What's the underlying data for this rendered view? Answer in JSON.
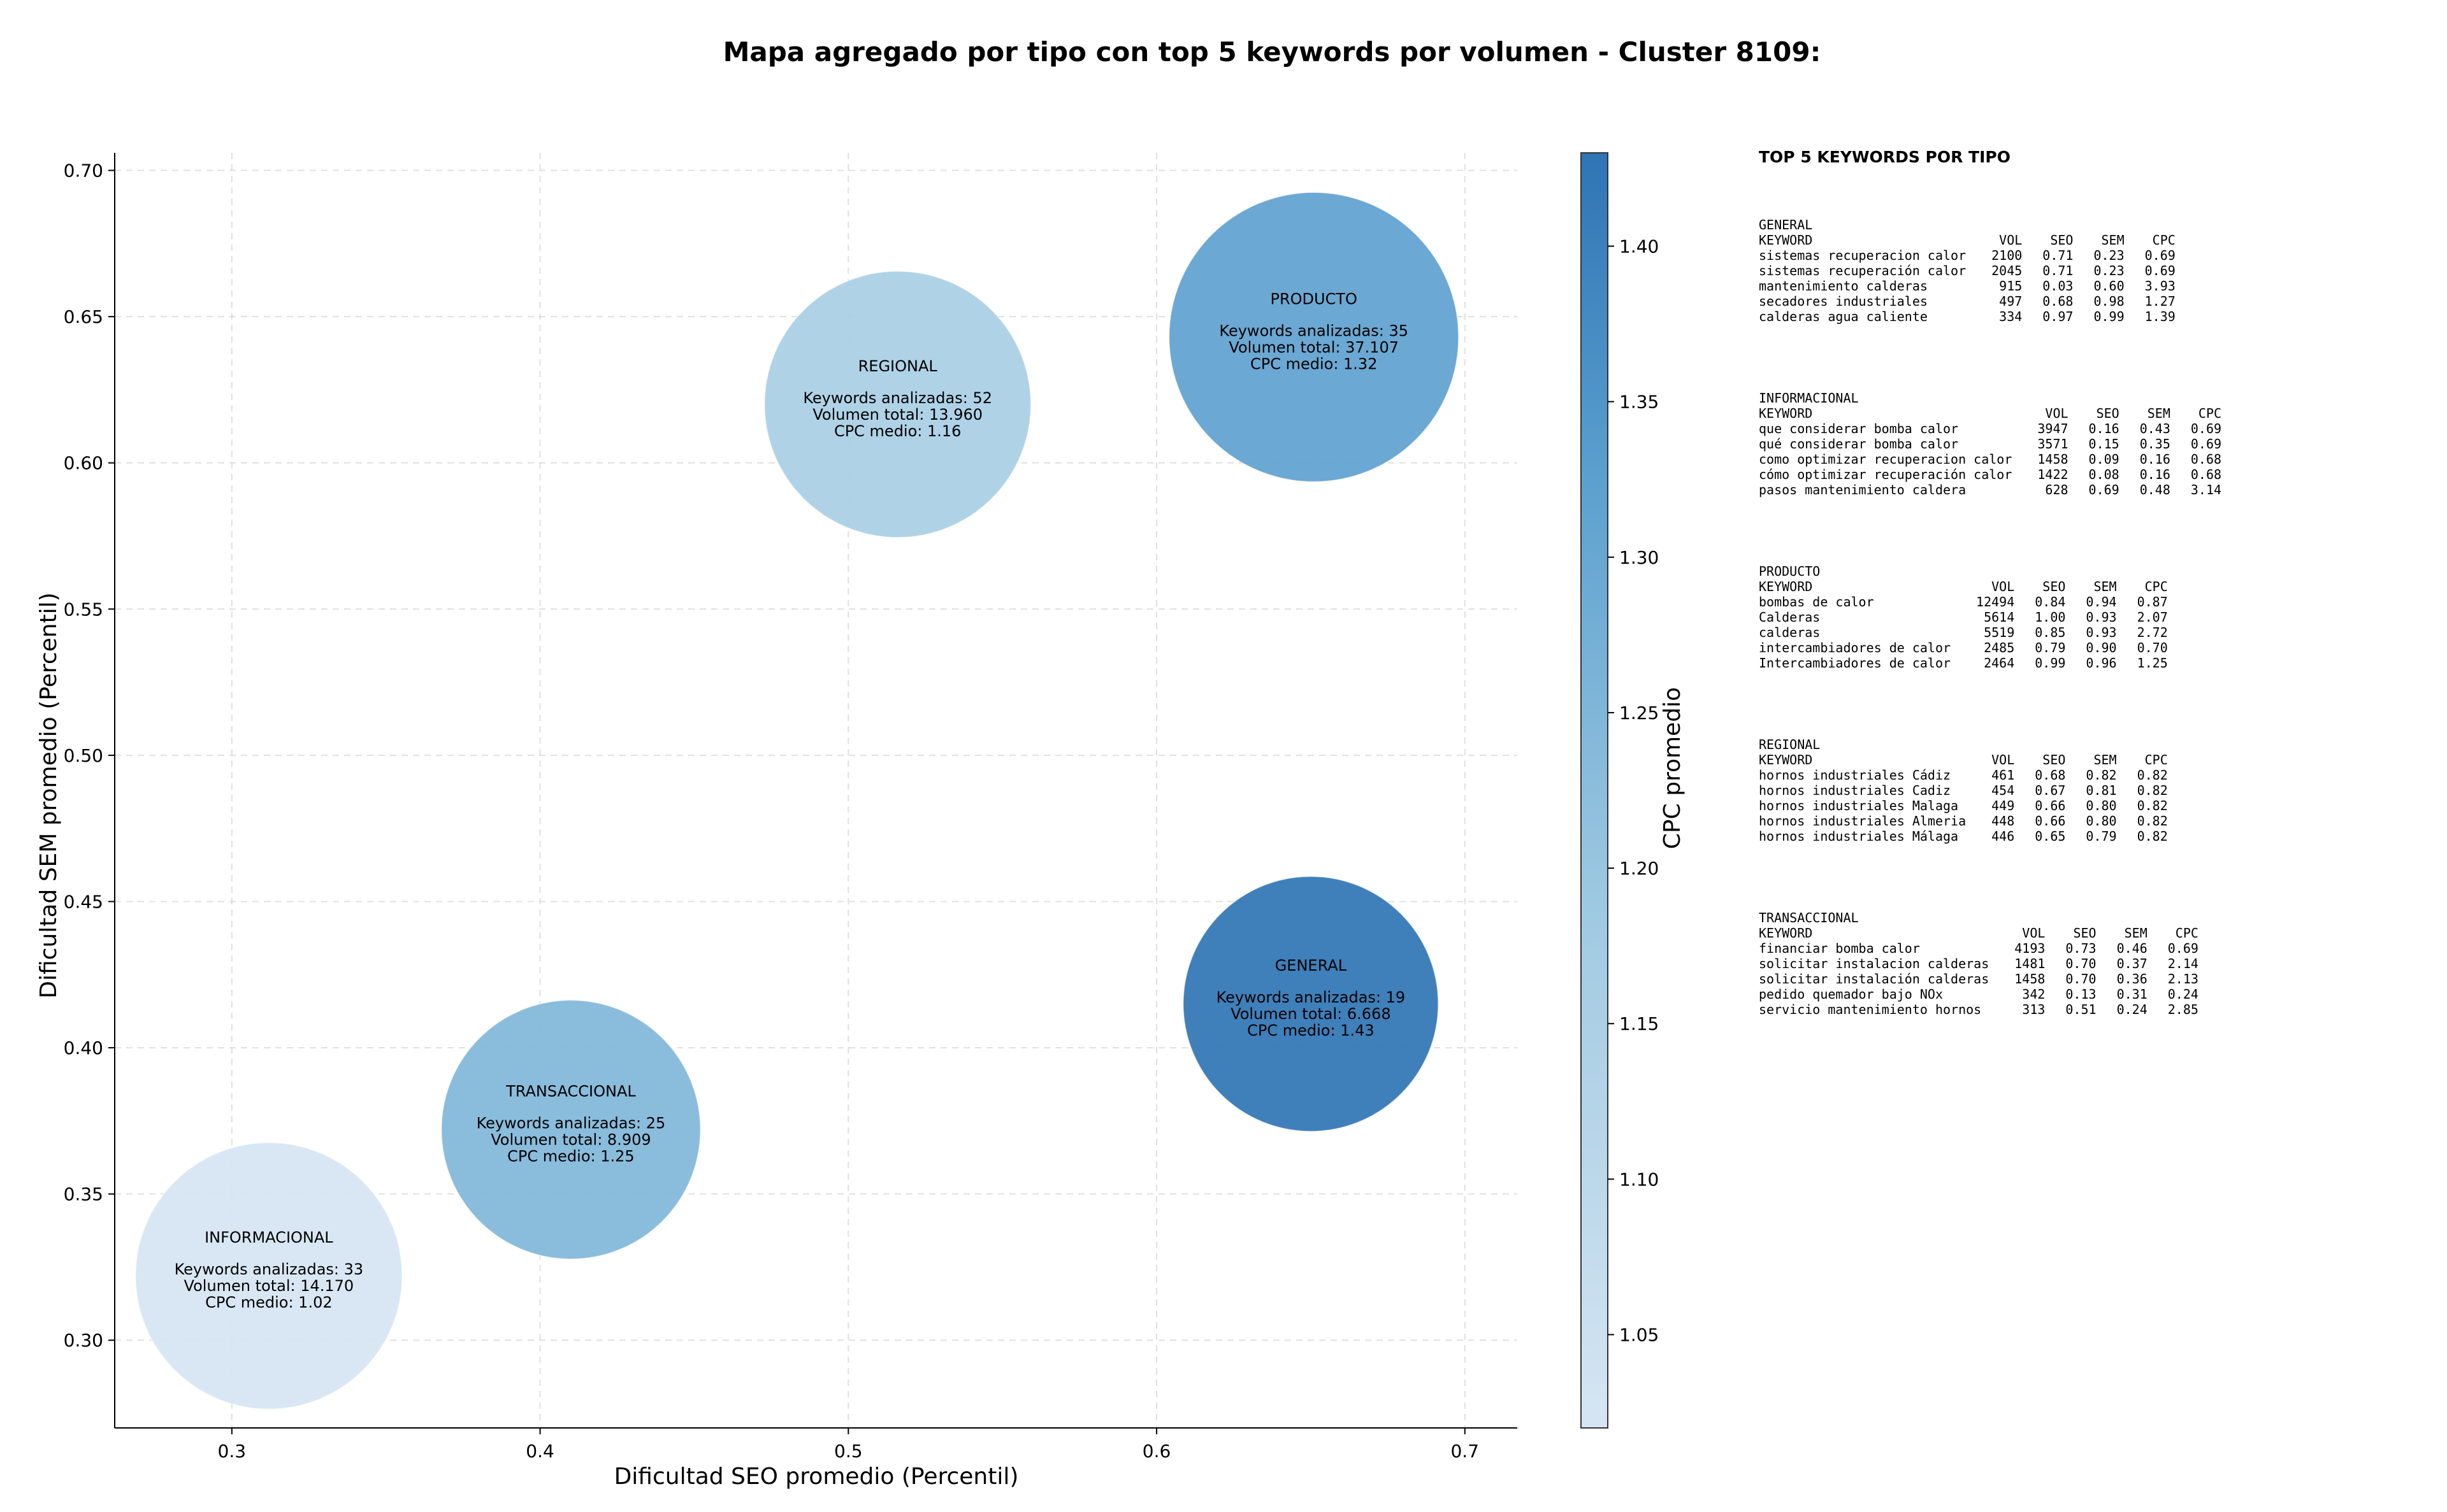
{
  "chart_data": {
    "type": "scatter",
    "title": "Mapa agregado por tipo con top 5 keywords por volumen - Cluster 8109:",
    "xlabel": "Dificultad SEO promedio (Percentil)",
    "ylabel": "Dificultad SEM promedio (Percentil)",
    "xlim": [
      0.262,
      0.717
    ],
    "ylim": [
      0.27,
      0.706
    ],
    "xticks": [
      "0.3",
      "0.4",
      "0.5",
      "0.6",
      "0.7"
    ],
    "yticks": [
      "0.30",
      "0.35",
      "0.40",
      "0.45",
      "0.50",
      "0.55",
      "0.60",
      "0.65",
      "0.70"
    ],
    "grid": true,
    "colorbar": {
      "label": "CPC promedio",
      "min": 1.02,
      "max": 1.43,
      "ticks": [
        "1.05",
        "1.10",
        "1.15",
        "1.20",
        "1.25",
        "1.30",
        "1.35",
        "1.40"
      ]
    },
    "labels": {
      "keywords": "Keywords analizadas:",
      "volume": "Volumen total:",
      "cpc": "CPC medio:"
    },
    "points": [
      {
        "name": "REGIONAL",
        "x": 0.516,
        "y": 0.62,
        "keywords": "52",
        "volume": "13.960",
        "volume_value": 13960,
        "cpc": "1.16",
        "cpc_value": 1.16
      },
      {
        "name": "PRODUCTO",
        "x": 0.651,
        "y": 0.643,
        "keywords": "35",
        "volume": "37.107",
        "volume_value": 37107,
        "cpc": "1.32",
        "cpc_value": 1.32
      },
      {
        "name": "GENERAL",
        "x": 0.65,
        "y": 0.415,
        "keywords": "19",
        "volume": "6.668",
        "volume_value": 6668,
        "cpc": "1.43",
        "cpc_value": 1.43
      },
      {
        "name": "TRANSACCIONAL",
        "x": 0.41,
        "y": 0.372,
        "keywords": "25",
        "volume": "8.909",
        "volume_value": 8909,
        "cpc": "1.25",
        "cpc_value": 1.25
      },
      {
        "name": "INFORMACIONAL",
        "x": 0.312,
        "y": 0.322,
        "keywords": "33",
        "volume": "14.170",
        "volume_value": 14170,
        "cpc": "1.02",
        "cpc_value": 1.02
      }
    ]
  },
  "panel": {
    "title": "TOP 5 KEYWORDS POR TIPO",
    "headers": {
      "keyword": "KEYWORD",
      "vol": "VOL",
      "seo": "SEO",
      "sem": "SEM",
      "cpc": "CPC"
    },
    "groups": [
      {
        "name": "GENERAL",
        "rows": [
          {
            "keyword": "sistemas recuperacion calor",
            "vol": "2100",
            "seo": "0.71",
            "sem": "0.23",
            "cpc": "0.69"
          },
          {
            "keyword": "sistemas recuperación calor",
            "vol": "2045",
            "seo": "0.71",
            "sem": "0.23",
            "cpc": "0.69"
          },
          {
            "keyword": "mantenimiento calderas",
            "vol": "915",
            "seo": "0.03",
            "sem": "0.60",
            "cpc": "3.93"
          },
          {
            "keyword": "secadores industriales",
            "vol": "497",
            "seo": "0.68",
            "sem": "0.98",
            "cpc": "1.27"
          },
          {
            "keyword": "calderas agua caliente",
            "vol": "334",
            "seo": "0.97",
            "sem": "0.99",
            "cpc": "1.39"
          }
        ]
      },
      {
        "name": "INFORMACIONAL",
        "rows": [
          {
            "keyword": "que considerar bomba calor",
            "vol": "3947",
            "seo": "0.16",
            "sem": "0.43",
            "cpc": "0.69"
          },
          {
            "keyword": "qué considerar bomba calor",
            "vol": "3571",
            "seo": "0.15",
            "sem": "0.35",
            "cpc": "0.69"
          },
          {
            "keyword": "como optimizar recuperacion calor",
            "vol": "1458",
            "seo": "0.09",
            "sem": "0.16",
            "cpc": "0.68"
          },
          {
            "keyword": "cómo optimizar recuperación calor",
            "vol": "1422",
            "seo": "0.08",
            "sem": "0.16",
            "cpc": "0.68"
          },
          {
            "keyword": "pasos mantenimiento caldera",
            "vol": "628",
            "seo": "0.69",
            "sem": "0.48",
            "cpc": "3.14"
          }
        ]
      },
      {
        "name": "PRODUCTO",
        "rows": [
          {
            "keyword": "bombas de calor",
            "vol": "12494",
            "seo": "0.84",
            "sem": "0.94",
            "cpc": "0.87"
          },
          {
            "keyword": "Calderas",
            "vol": "5614",
            "seo": "1.00",
            "sem": "0.93",
            "cpc": "2.07"
          },
          {
            "keyword": "calderas",
            "vol": "5519",
            "seo": "0.85",
            "sem": "0.93",
            "cpc": "2.72"
          },
          {
            "keyword": "intercambiadores de calor",
            "vol": "2485",
            "seo": "0.79",
            "sem": "0.90",
            "cpc": "0.70"
          },
          {
            "keyword": "Intercambiadores de calor",
            "vol": "2464",
            "seo": "0.99",
            "sem": "0.96",
            "cpc": "1.25"
          }
        ]
      },
      {
        "name": "REGIONAL",
        "rows": [
          {
            "keyword": "hornos industriales Cádiz",
            "vol": "461",
            "seo": "0.68",
            "sem": "0.82",
            "cpc": "0.82"
          },
          {
            "keyword": "hornos industriales Cadiz",
            "vol": "454",
            "seo": "0.67",
            "sem": "0.81",
            "cpc": "0.82"
          },
          {
            "keyword": "hornos industriales Malaga",
            "vol": "449",
            "seo": "0.66",
            "sem": "0.80",
            "cpc": "0.82"
          },
          {
            "keyword": "hornos industriales Almeria",
            "vol": "448",
            "seo": "0.66",
            "sem": "0.80",
            "cpc": "0.82"
          },
          {
            "keyword": "hornos industriales Málaga",
            "vol": "446",
            "seo": "0.65",
            "sem": "0.79",
            "cpc": "0.82"
          }
        ]
      },
      {
        "name": "TRANSACCIONAL",
        "rows": [
          {
            "keyword": "financiar bomba calor",
            "vol": "4193",
            "seo": "0.73",
            "sem": "0.46",
            "cpc": "0.69"
          },
          {
            "keyword": "solicitar instalacion calderas",
            "vol": "1481",
            "seo": "0.70",
            "sem": "0.37",
            "cpc": "2.14"
          },
          {
            "keyword": "solicitar instalación calderas",
            "vol": "1458",
            "seo": "0.70",
            "sem": "0.36",
            "cpc": "2.13"
          },
          {
            "keyword": "pedido quemador bajo NOx",
            "vol": "342",
            "seo": "0.13",
            "sem": "0.31",
            "cpc": "0.24"
          },
          {
            "keyword": "servicio mantenimiento hornos",
            "vol": "313",
            "seo": "0.51",
            "sem": "0.24",
            "cpc": "2.85"
          }
        ]
      }
    ]
  }
}
